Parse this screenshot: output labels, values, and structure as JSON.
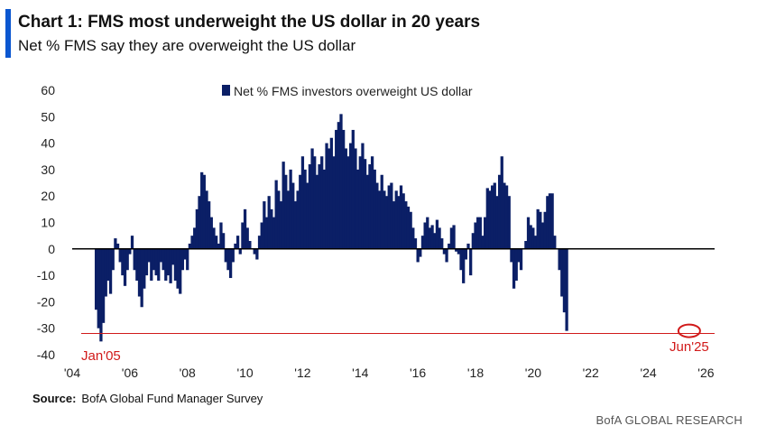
{
  "header": {
    "title": "Chart 1: FMS most underweight the US dollar in 20 years",
    "subtitle": "Net % FMS say they are overweight the US dollar"
  },
  "footer": {
    "source_label": "Source:",
    "source_text": "BofA Global Fund Manager Survey",
    "brand": "BofA GLOBAL RESEARCH"
  },
  "colors": {
    "bar": "#0b1f66",
    "accent": "#0b57d0",
    "annotation": "#d11a1a",
    "zero_line": "#000000"
  },
  "chart_data": {
    "type": "bar",
    "title": "Chart 1: FMS most underweight the US dollar in 20 years",
    "subtitle": "Net % FMS say they are overweight the US dollar",
    "legend": {
      "label": "Net % FMS investors overweight US dollar",
      "position": "top"
    },
    "ylim": [
      -40,
      60
    ],
    "yticks": [
      60,
      50,
      40,
      30,
      20,
      10,
      0,
      -10,
      -20,
      -30,
      -40
    ],
    "xlim": [
      2004,
      2026.3
    ],
    "xticks": [
      {
        "value": 2004,
        "label": "'04"
      },
      {
        "value": 2006,
        "label": "'06"
      },
      {
        "value": 2008,
        "label": "'08"
      },
      {
        "value": 2010,
        "label": "'10"
      },
      {
        "value": 2012,
        "label": "'12"
      },
      {
        "value": 2014,
        "label": "'14"
      },
      {
        "value": 2016,
        "label": "'16"
      },
      {
        "value": 2018,
        "label": "'18"
      },
      {
        "value": 2020,
        "label": "'20"
      },
      {
        "value": 2022,
        "label": "'22"
      },
      {
        "value": 2024,
        "label": "'24"
      },
      {
        "value": 2026,
        "label": "'26"
      }
    ],
    "reference_line": -32,
    "annotations": [
      {
        "label": "Jan'05",
        "x": 2005.0,
        "y": -35
      },
      {
        "label": "Jun'25",
        "x": 2025.42,
        "y": -31
      }
    ],
    "series": [
      {
        "start": "2004-11",
        "frequency": "monthly",
        "values": [
          -23,
          -30,
          -35,
          -28,
          -18,
          -12,
          -17,
          -8,
          4,
          2,
          -5,
          -10,
          -14,
          -8,
          -2,
          5,
          -8,
          -12,
          -18,
          -22,
          -15,
          -10,
          -5,
          -12,
          -8,
          -10,
          -12,
          -5,
          -8,
          -12,
          -10,
          -13,
          -6,
          -12,
          -15,
          -17,
          -8,
          -4,
          -8,
          2,
          5,
          8,
          15,
          20,
          29,
          28,
          22,
          18,
          12,
          8,
          5,
          2,
          10,
          6,
          -5,
          -8,
          -11,
          -5,
          2,
          5,
          -2,
          10,
          15,
          8,
          3,
          0,
          -2,
          -4,
          5,
          10,
          18,
          12,
          20,
          15,
          12,
          26,
          22,
          18,
          33,
          28,
          22,
          30,
          25,
          18,
          22,
          28,
          35,
          30,
          25,
          32,
          38,
          35,
          28,
          32,
          35,
          30,
          40,
          38,
          42,
          35,
          45,
          48,
          51,
          45,
          38,
          35,
          40,
          45,
          38,
          30,
          35,
          40,
          34,
          28,
          32,
          35,
          30,
          25,
          22,
          28,
          22,
          20,
          24,
          25,
          18,
          22,
          20,
          24,
          21,
          18,
          16,
          14,
          8,
          4,
          -5,
          -3,
          5,
          10,
          12,
          8,
          9,
          6,
          11,
          8,
          4,
          -2,
          -5,
          2,
          8,
          9,
          -1,
          -2,
          -8,
          -13,
          -4,
          2,
          -10,
          6,
          10,
          12,
          12,
          5,
          12,
          23,
          22,
          24,
          25,
          20,
          28,
          35,
          25,
          24,
          20,
          -5,
          -15,
          -12,
          -5,
          -8,
          0,
          3,
          12,
          9,
          8,
          5,
          15,
          14,
          10,
          14,
          20,
          21,
          21,
          5,
          0,
          -8,
          -18,
          -24,
          -31
        ]
      }
    ]
  }
}
